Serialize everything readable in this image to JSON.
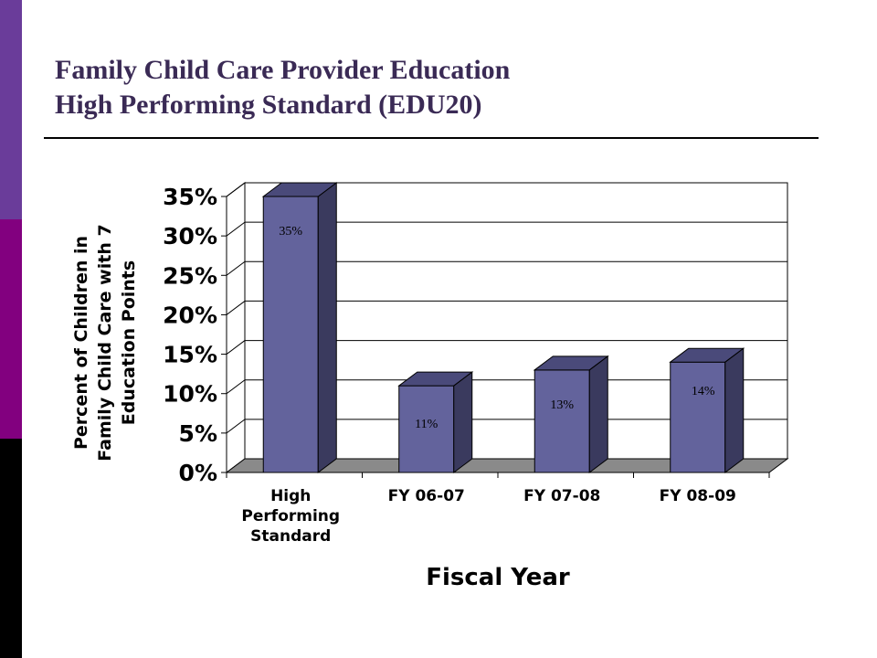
{
  "slide": {
    "title_line1": "Family Child Care Provider Education",
    "title_line2": "High Performing Standard (EDU20)"
  },
  "chart_data": {
    "type": "bar",
    "categories": [
      [
        "High",
        "Performing",
        "Standard"
      ],
      [
        "FY 06-07"
      ],
      [
        "FY 07-08"
      ],
      [
        "FY 08-09"
      ]
    ],
    "values": [
      35,
      11,
      13,
      14
    ],
    "data_labels": [
      "35%",
      "11%",
      "13%",
      "14%"
    ],
    "xlabel": "Fiscal Year",
    "ylabel_lines": [
      "Percent of Children in",
      "Family Child Care with 7",
      "Education Points"
    ],
    "ylim": [
      0,
      35
    ],
    "yticks": [
      0,
      5,
      10,
      15,
      20,
      25,
      30,
      35
    ],
    "ytick_labels": [
      "0%",
      "5%",
      "10%",
      "15%",
      "20%",
      "25%",
      "30%",
      "35%"
    ],
    "grid": true,
    "legend": "none",
    "colors": {
      "bar_front": "#63639c",
      "bar_side": "#3a3a5e",
      "bar_top": "#4a4a7a",
      "floor": "#8a8a8a",
      "grid": "#000000"
    }
  }
}
